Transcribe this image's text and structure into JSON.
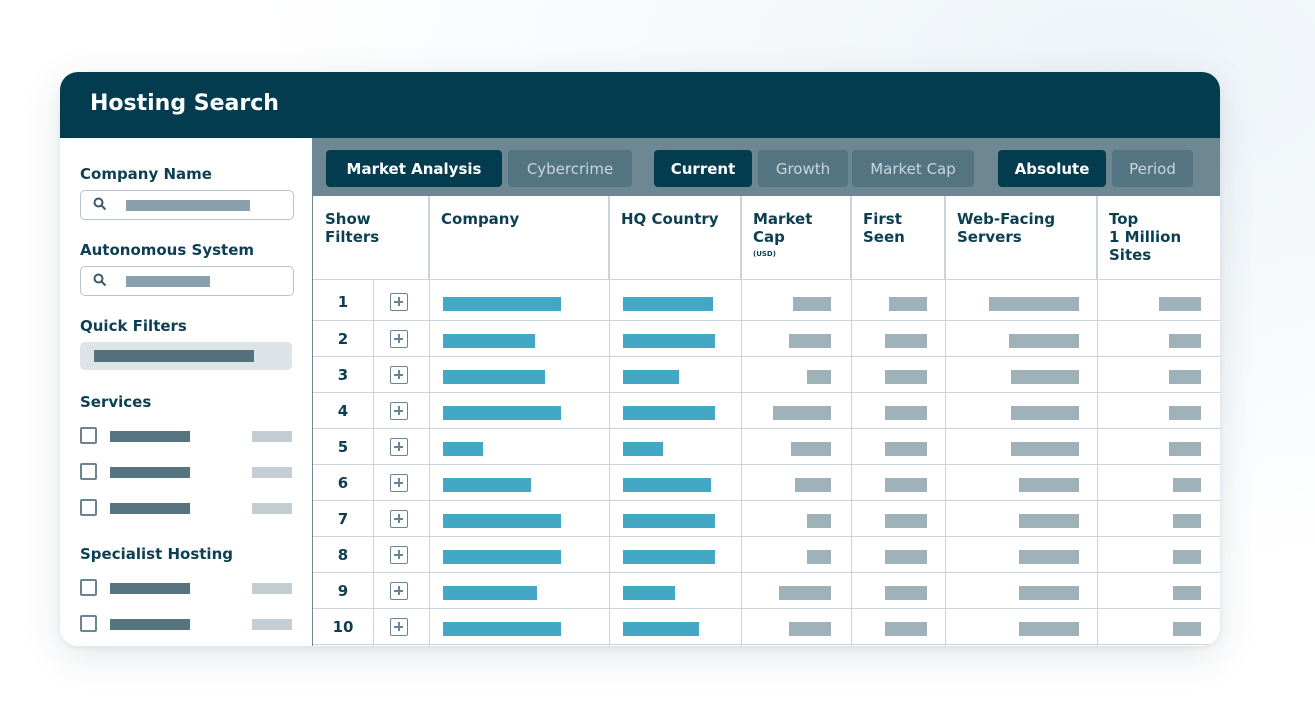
{
  "window": {
    "title": "Hosting Search"
  },
  "sidebar": {
    "company_name_label": "Company Name",
    "autonomous_system_label": "Autonomous System",
    "quick_filters_label": "Quick Filters",
    "services_label": "Services",
    "specialist_hosting_label": "Specialist Hosting",
    "services_count": 3,
    "specialist_count": 2
  },
  "toolbar": {
    "groups": [
      {
        "buttons": [
          {
            "label": "Market Analysis",
            "active": true
          },
          {
            "label": "Cybercrime",
            "active": false
          }
        ]
      },
      {
        "buttons": [
          {
            "label": "Current",
            "active": true
          },
          {
            "label": "Growth",
            "active": false
          },
          {
            "label": "Market Cap",
            "active": false
          }
        ]
      },
      {
        "buttons": [
          {
            "label": "Absolute",
            "active": true
          },
          {
            "label": "Period",
            "active": false
          }
        ]
      }
    ]
  },
  "table": {
    "columns": [
      {
        "label": "Show\nFilters"
      },
      {
        "label": "Company"
      },
      {
        "label": "HQ Country"
      },
      {
        "label": "Market\nCap",
        "sublabel": "(USD)"
      },
      {
        "label": "First\nSeen"
      },
      {
        "label": "Web-Facing\nServers"
      },
      {
        "label": "Top\n1 Million\nSites"
      }
    ],
    "rows": [
      {
        "rank": "1"
      },
      {
        "rank": "2"
      },
      {
        "rank": "3"
      },
      {
        "rank": "4"
      },
      {
        "rank": "5"
      },
      {
        "rank": "6"
      },
      {
        "rank": "7"
      },
      {
        "rank": "8"
      },
      {
        "rank": "9"
      },
      {
        "rank": "10"
      }
    ]
  },
  "colors": {
    "header_bg": "#033c4f",
    "toolbar_bg": "#6d8893",
    "accent_bar": "#42a8c6",
    "placeholder_bar": "#9fb2ba"
  }
}
